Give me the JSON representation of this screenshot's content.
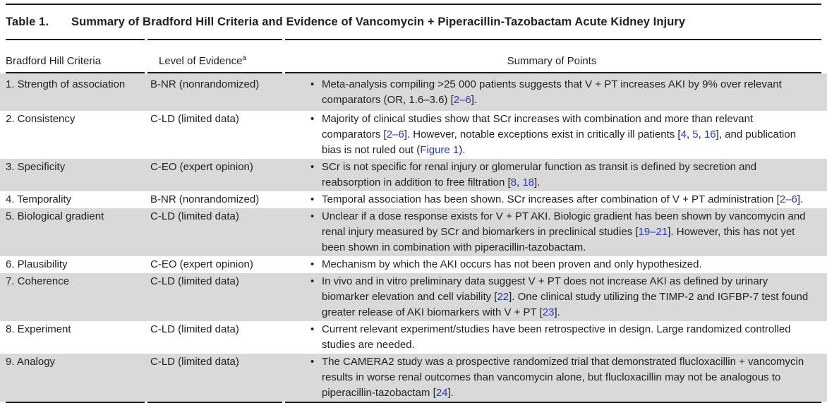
{
  "table": {
    "label": "Table 1.",
    "title": "Summary of Bradford Hill Criteria and Evidence of Vancomycin + Piperacillin-Tazobactam Acute Kidney Injury",
    "columns": [
      "Bradford Hill Criteria",
      "Level of Evidence",
      "Summary of Points"
    ],
    "evidence_footnote_marker": "a",
    "rows": [
      {
        "criteria": "1. Strength of association",
        "evidence": "B-NR (nonrandomized)",
        "shaded": true,
        "summary": [
          {
            "text": "Meta-analysis compiling >25 000 patients suggests that V + PT increases AKI by 9% over relevant comparators (OR, 1.6–3.6) ["
          },
          {
            "text": "2–6",
            "link": true
          },
          {
            "text": "]."
          }
        ]
      },
      {
        "criteria": "2. Consistency",
        "evidence": "C-LD (limited data)",
        "shaded": false,
        "summary": [
          {
            "text": "Majority of clinical studies show that SCr increases with combination and more than relevant comparators ["
          },
          {
            "text": "2–6",
            "link": true
          },
          {
            "text": "]. However, notable exceptions exist in critically ill patients ["
          },
          {
            "text": "4",
            "link": true
          },
          {
            "text": ", "
          },
          {
            "text": "5",
            "link": true
          },
          {
            "text": ", "
          },
          {
            "text": "16",
            "link": true
          },
          {
            "text": "], and publication bias is not ruled out ("
          },
          {
            "text": "Figure 1",
            "link": true
          },
          {
            "text": ")."
          }
        ]
      },
      {
        "criteria": "3. Specificity",
        "evidence": "C-EO (expert opinion)",
        "shaded": true,
        "summary": [
          {
            "text": "SCr is not specific for renal injury or glomerular function as transit is defined by secretion and reabsorption in addition to free filtration ["
          },
          {
            "text": "8",
            "link": true
          },
          {
            "text": ", "
          },
          {
            "text": "18",
            "link": true
          },
          {
            "text": "]."
          }
        ]
      },
      {
        "criteria": "4. Temporality",
        "evidence": "B-NR (nonrandomized)",
        "shaded": false,
        "summary": [
          {
            "text": "Temporal association has been shown. SCr increases after combination of V + PT administration ["
          },
          {
            "text": "2–6",
            "link": true
          },
          {
            "text": "]."
          }
        ]
      },
      {
        "criteria": "5. Biological gradient",
        "evidence": "C-LD (limited data)",
        "shaded": true,
        "summary": [
          {
            "text": "Unclear if a dose response exists for V + PT AKI. Biologic gradient has been shown by vancomycin and renal injury measured by SCr and biomarkers in preclinical studies ["
          },
          {
            "text": "19–21",
            "link": true
          },
          {
            "text": "]. However, this has not yet been shown in combination with piperacillin-tazobactam."
          }
        ]
      },
      {
        "criteria": "6. Plausibility",
        "evidence": "C-EO (expert opinion)",
        "shaded": false,
        "summary": [
          {
            "text": "Mechanism by which the AKI occurs has not been proven and only hypothesized."
          }
        ]
      },
      {
        "criteria": "7. Coherence",
        "evidence": "C-LD (limited data)",
        "shaded": true,
        "summary": [
          {
            "text": "In vivo and in vitro preliminary data suggest V + PT does not increase AKI as defined by urinary biomarker elevation and cell viability ["
          },
          {
            "text": "22",
            "link": true
          },
          {
            "text": "]. One clinical study utilizing the TIMP-2 and IGFBP-7 test found greater release of AKI biomarkers with V + PT ["
          },
          {
            "text": "23",
            "link": true
          },
          {
            "text": "]."
          }
        ]
      },
      {
        "criteria": "8. Experiment",
        "evidence": "C-LD (limited data)",
        "shaded": false,
        "summary": [
          {
            "text": "Current relevant experiment/studies have been retrospective in design. Large randomized controlled studies are needed."
          }
        ]
      },
      {
        "criteria": "9. Analogy",
        "evidence": "C-LD (limited data)",
        "shaded": true,
        "summary": [
          {
            "text": "The CAMERA2 study was a prospective randomized trial that demonstrated flucloxacillin + vancomycin results in worse renal outcomes than vancomycin alone, but flucloxacillin may not be analogous to piperacillin-tazobactam ["
          },
          {
            "text": "24",
            "link": true
          },
          {
            "text": "]."
          }
        ]
      }
    ]
  },
  "colors": {
    "shaded_row": "#d9d9d9",
    "link": "#2639cc",
    "text": "#221f1f",
    "rule": "#1c1c1c"
  }
}
